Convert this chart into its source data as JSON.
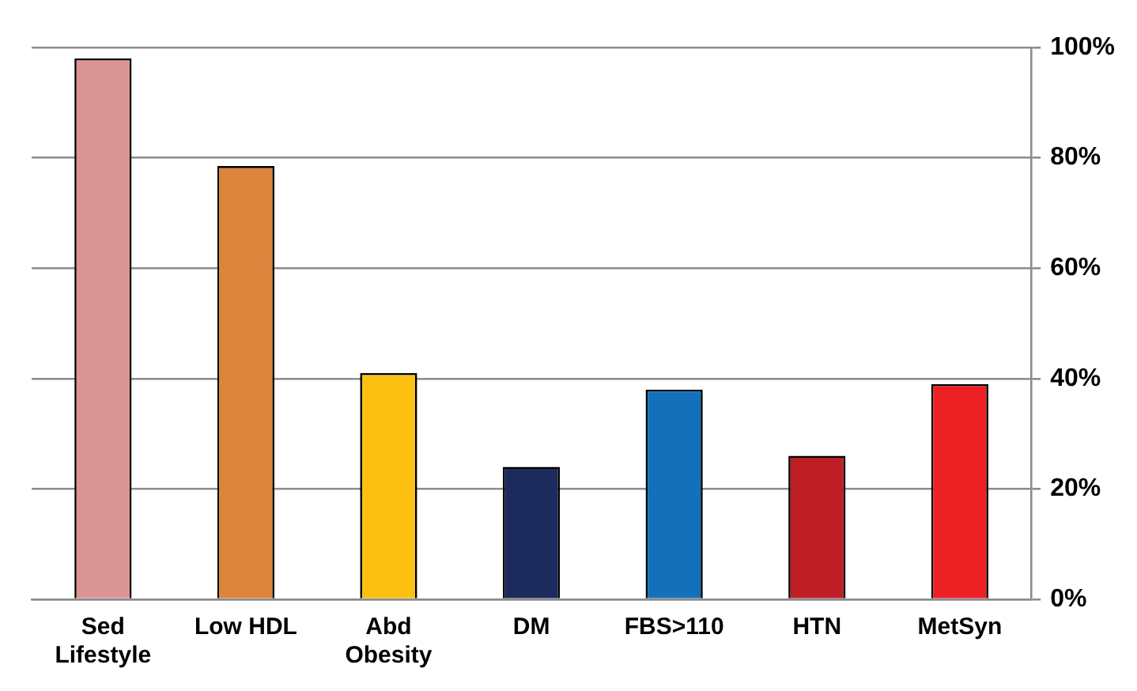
{
  "chart_data": {
    "type": "bar",
    "categories": [
      "Sed Lifestyle",
      "Low HDL",
      "Abd Obesity",
      "DM",
      "FBS>110",
      "HTN",
      "MetSyn"
    ],
    "values": [
      98,
      78.5,
      41,
      24,
      38,
      26,
      39
    ],
    "colors": [
      "#d99594",
      "#dc843c",
      "#fbc012",
      "#1d2a5c",
      "#1471b9",
      "#be1e25",
      "#ed2024"
    ],
    "ylim": [
      0,
      100
    ],
    "yticks": [
      {
        "value": 0,
        "label": "0%"
      },
      {
        "value": 20,
        "label": "20%"
      },
      {
        "value": 40,
        "label": "40%"
      },
      {
        "value": 60,
        "label": "60%"
      },
      {
        "value": 80,
        "label": "80%"
      },
      {
        "value": 100,
        "label": "100%"
      }
    ],
    "grid": "y",
    "legend": false
  }
}
